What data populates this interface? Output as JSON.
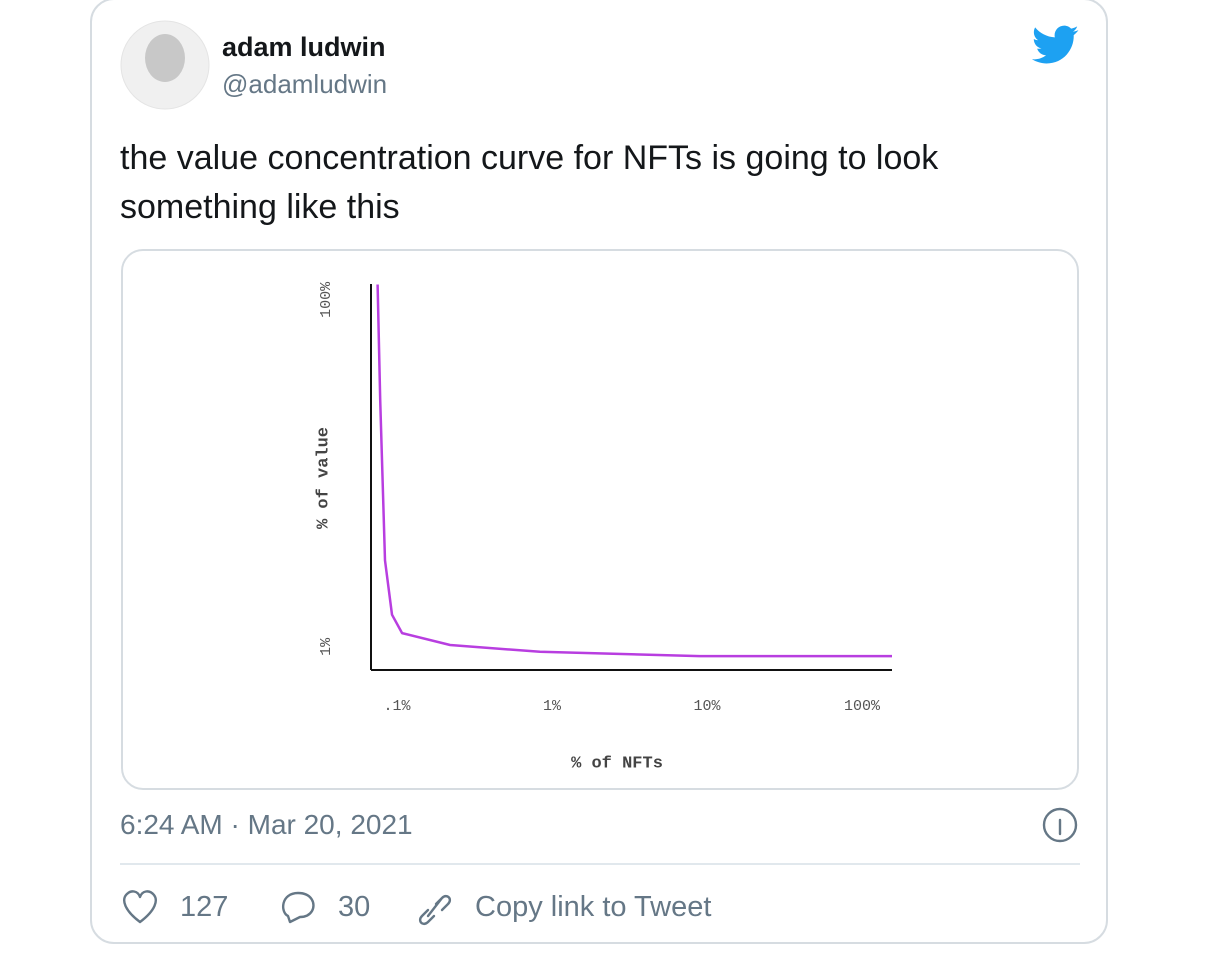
{
  "tweet": {
    "author_name": "adam ludwin",
    "handle": "@adamludwin",
    "text": "the value concentration curve for NFTs is going to look something like this",
    "timestamp": "6:24 AM · Mar 20, 2021",
    "likes": 127,
    "replies": 30,
    "copy_link": "Copy link to Tweet"
  },
  "chart_data": {
    "type": "line",
    "x_label": "% of NFTs",
    "y_label": "% of value",
    "x": [
      0.075,
      0.078,
      0.0837,
      0.0929,
      0.108,
      0.22,
      0.837,
      9.0,
      156
    ],
    "values": [
      140,
      30.3,
      3.6,
      1.75,
      1.37,
      1.17,
      1.07,
      1.01,
      1.01
    ],
    "color": "#b83ee0",
    "xscale": "log",
    "yscale": "log",
    "xlim": [
      0.068,
      156
    ],
    "ylim": [
      0.84,
      141
    ],
    "xticks": [
      {
        "value": 0.1,
        "label": ".1%"
      },
      {
        "value": 1,
        "label": "1%"
      },
      {
        "value": 10,
        "label": "10%"
      },
      {
        "value": 100,
        "label": "100%"
      }
    ],
    "yticks": [
      {
        "value": 1,
        "label": "1%"
      },
      {
        "value": 100,
        "label": "100%"
      }
    ]
  }
}
